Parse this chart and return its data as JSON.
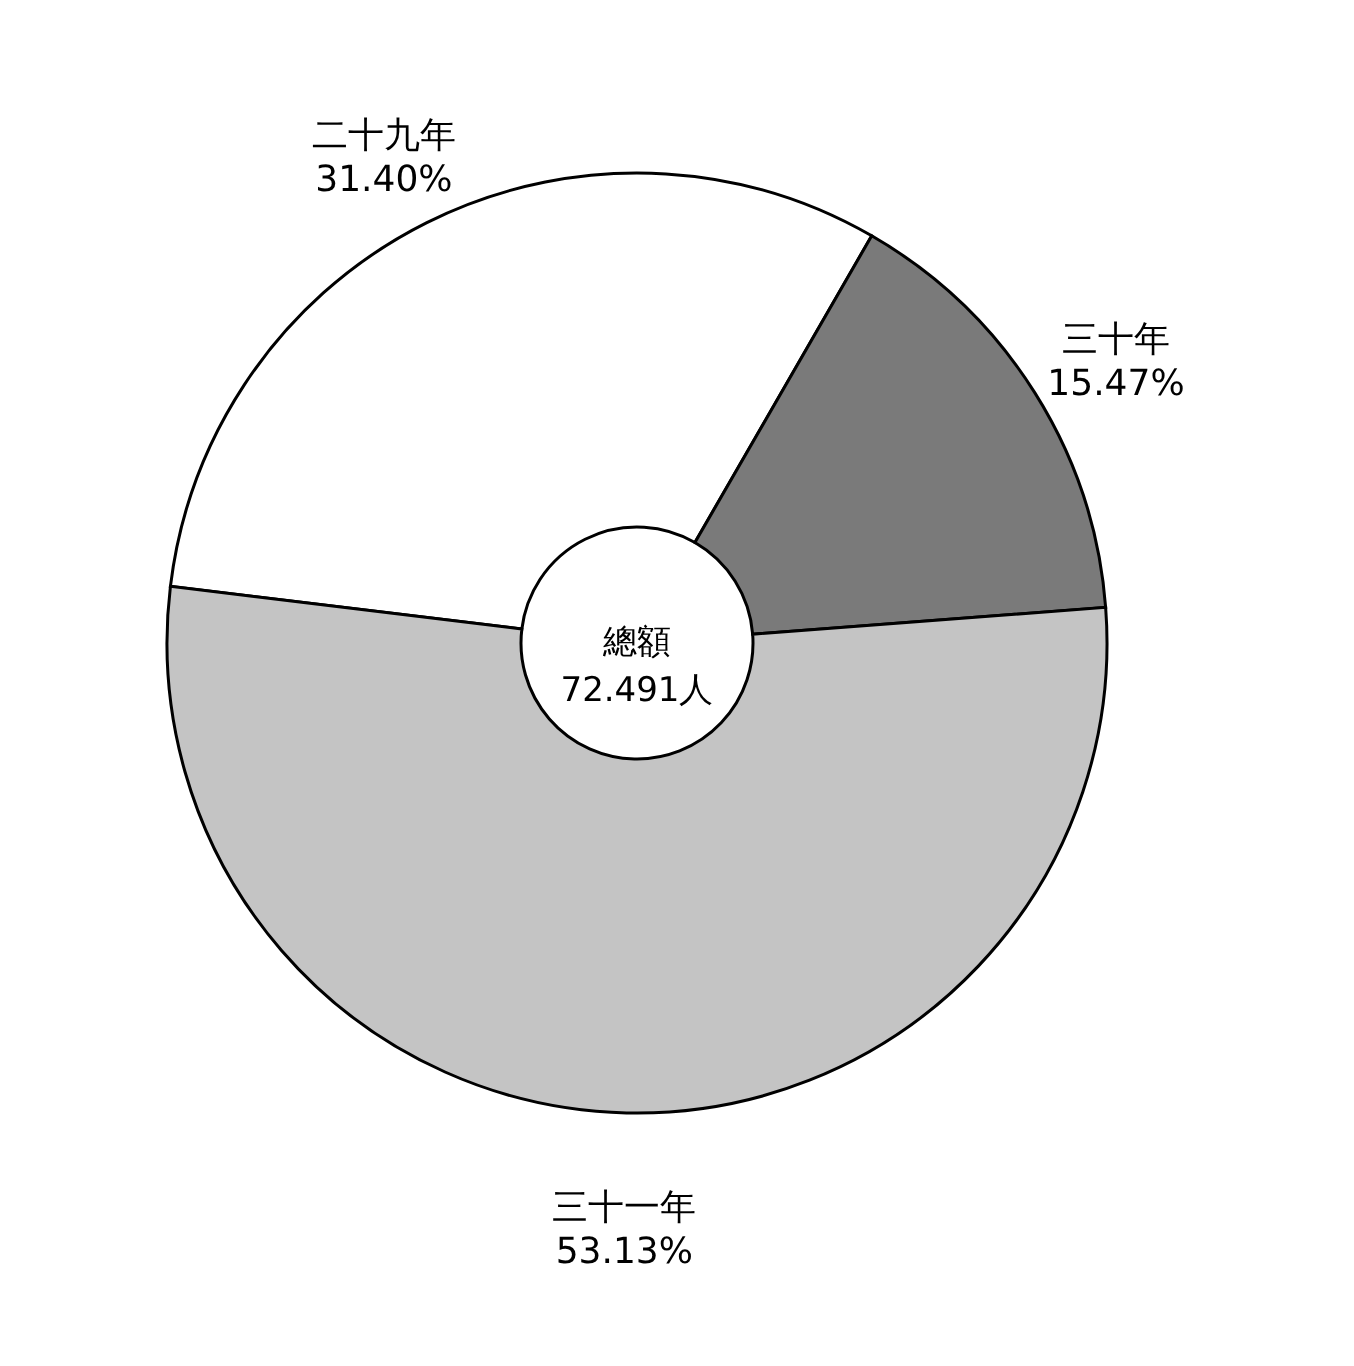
{
  "chart_data": {
    "type": "donut",
    "categories": [
      "二十九年",
      "三十年",
      "三十一年"
    ],
    "values": [
      31.4,
      15.47,
      53.13
    ],
    "value_labels": [
      "31.40%",
      "15.47%",
      "53.13%"
    ],
    "colors": [
      "#ffffff",
      "#7a7a7a",
      "#c4c4c4"
    ],
    "annotations": [
      "總額",
      "72.491人"
    ]
  }
}
